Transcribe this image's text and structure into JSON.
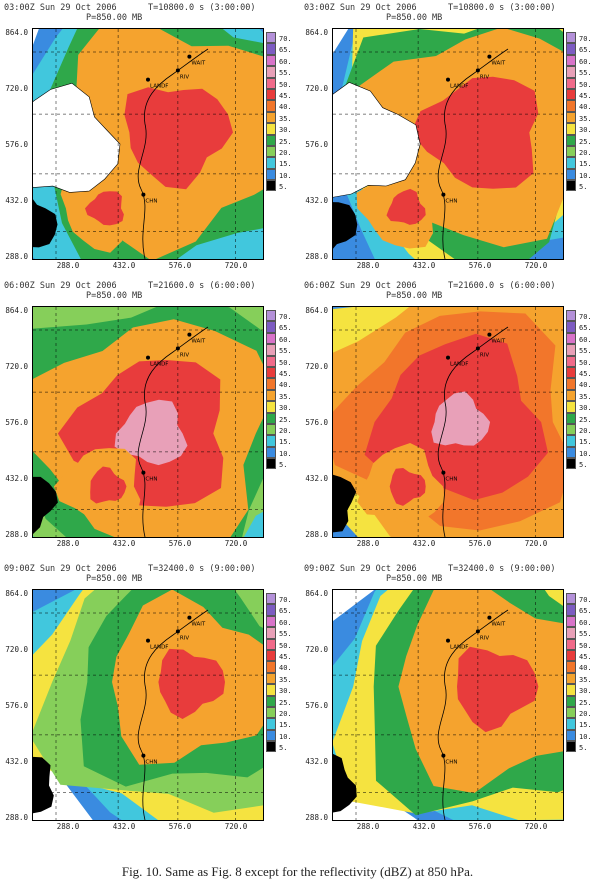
{
  "figure": {
    "caption": "Fig. 10. Same as Fig. 8 except for the reflectivity (dBZ) at 850 hPa.",
    "pressure_label": "P=850.00 MB",
    "y_ticks": [
      "864.0",
      "720.0",
      "576.0",
      "432.0",
      "288.0"
    ],
    "x_ticks": [
      "288.0",
      "432.0",
      "576.0",
      "720.0"
    ],
    "colorbar_labels": [
      "70.",
      "65.",
      "60.",
      "55.",
      "50.",
      "45.",
      "40.",
      "35.",
      "30.",
      "25.",
      "20.",
      "15.",
      "10.",
      "5."
    ],
    "colorbar_colors": [
      "#b491d9",
      "#7d5cc2",
      "#d873c9",
      "#e8a0b8",
      "#f06a8a",
      "#e83c3c",
      "#f2762b",
      "#f5a32e",
      "#f5e340",
      "#2fa84a",
      "#86cf5a",
      "#41c7dd",
      "#3a8be0",
      "#000000"
    ],
    "station_labels": [
      "LANDF",
      "RIV",
      "WAIT",
      "CHN"
    ],
    "panels": [
      {
        "id": "p1",
        "date": "03:00Z Sun 29 Oct 2006",
        "time": "T=10800.0 s (3:00:00)"
      },
      {
        "id": "p2",
        "date": "03:00Z Sun 29 Oct 2006",
        "time": "T=10800.0 s (3:00:00)"
      },
      {
        "id": "p3",
        "date": "06:00Z Sun 29 Oct 2006",
        "time": "T=21600.0 s (6:00:00)"
      },
      {
        "id": "p4",
        "date": "06:00Z Sun 29 Oct 2006",
        "time": "T=21600.0 s (6:00:00)"
      },
      {
        "id": "p5",
        "date": "09:00Z Sun 29 Oct 2006",
        "time": "T=32400.0 s (9:00:00)"
      },
      {
        "id": "p6",
        "date": "09:00Z Sun 29 Oct 2006",
        "time": "T=32400.0 s (9:00:00)"
      }
    ]
  }
}
